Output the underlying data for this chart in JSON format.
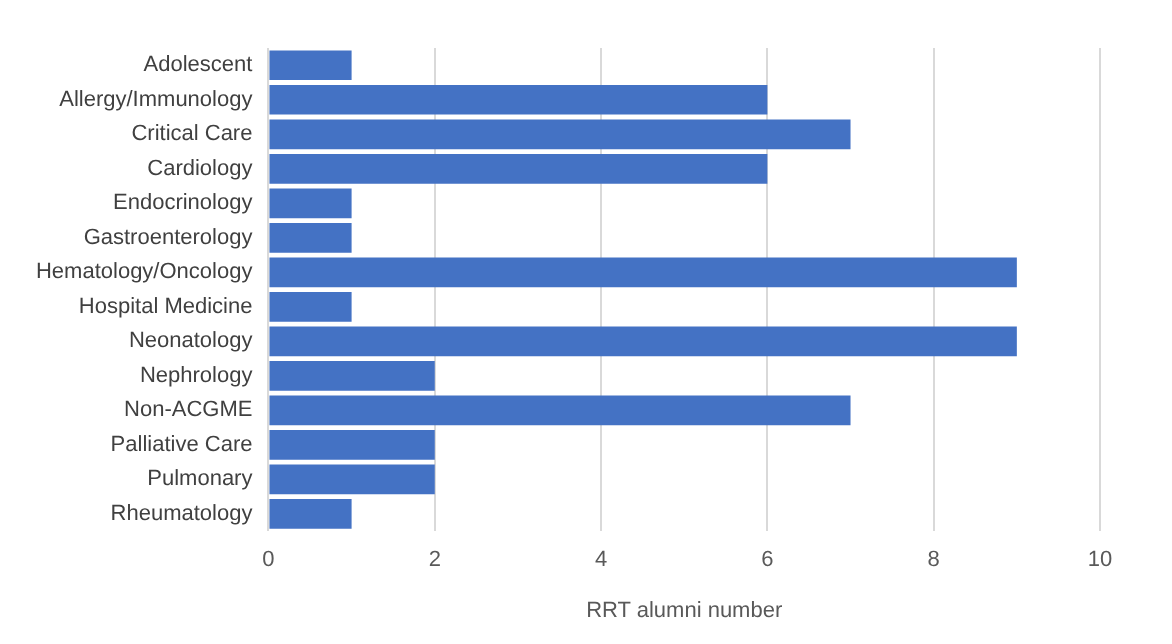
{
  "chart_data": {
    "type": "bar",
    "orientation": "horizontal",
    "xlabel": "RRT alumni number",
    "categories": [
      "Adolescent",
      "Allergy/Immunology",
      "Critical Care",
      "Cardiology",
      "Endocrinology",
      "Gastroenterology",
      "Hematology/Oncology",
      "Hospital Medicine",
      "Neonatology",
      "Nephrology",
      "Non-ACGME",
      "Palliative Care",
      "Pulmonary",
      "Rheumatology"
    ],
    "values": [
      1,
      6,
      7,
      6,
      1,
      1,
      9,
      1,
      9,
      2,
      7,
      2,
      2,
      1
    ],
    "color": "#4472c4",
    "xlim": [
      0,
      10
    ],
    "xticks": [
      0,
      2,
      4,
      6,
      8,
      10
    ],
    "grid": "x"
  }
}
